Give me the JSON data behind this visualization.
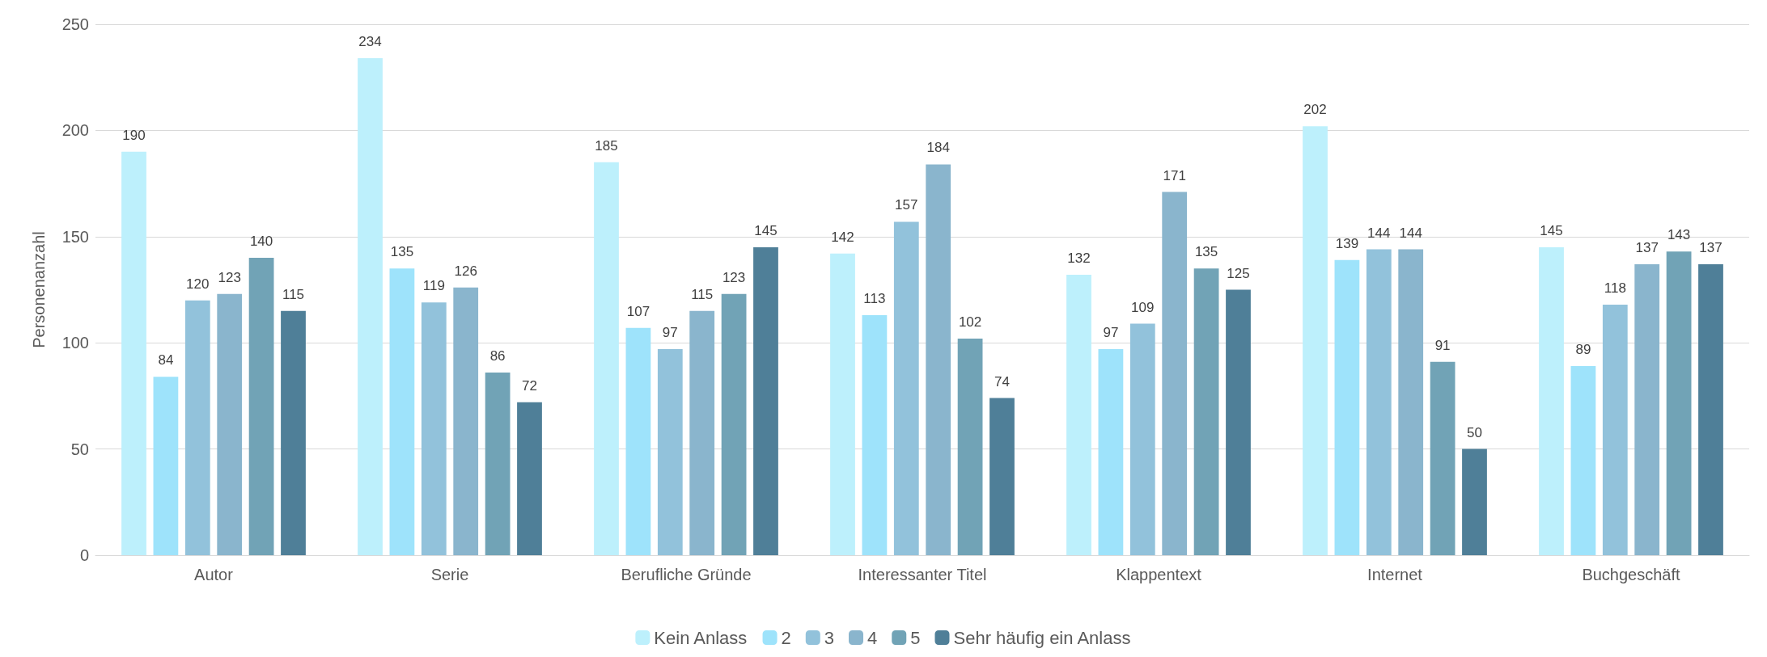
{
  "chart_data": {
    "type": "bar",
    "ylabel": "Personenanzahl",
    "categories": [
      "Autor",
      "Serie",
      "Berufliche Gründe",
      "Interessanter Titel",
      "Klappentext",
      "Internet",
      "Buchgeschäft"
    ],
    "series": [
      {
        "name": "Kein Anlass",
        "color": "#bdf0fc",
        "values": [
          190,
          234,
          185,
          142,
          132,
          202,
          145
        ]
      },
      {
        "name": "2",
        "color": "#9ee3fb",
        "values": [
          84,
          135,
          107,
          113,
          97,
          139,
          89
        ]
      },
      {
        "name": "3",
        "color": "#92c2db",
        "values": [
          120,
          119,
          97,
          157,
          109,
          144,
          118
        ]
      },
      {
        "name": "4",
        "color": "#8ab5cd",
        "values": [
          123,
          126,
          115,
          184,
          171,
          144,
          137
        ]
      },
      {
        "name": "5",
        "color": "#71a3b6",
        "values": [
          140,
          86,
          123,
          102,
          135,
          91,
          143
        ]
      },
      {
        "name": "Sehr häufig ein Anlass",
        "color": "#4f7f98",
        "values": [
          115,
          72,
          145,
          74,
          125,
          50,
          137
        ]
      }
    ],
    "ylim": [
      0,
      250
    ],
    "yticks": [
      0,
      50,
      100,
      150,
      200,
      250
    ],
    "grid": "y",
    "legend": "bottom",
    "data_labels": true
  }
}
